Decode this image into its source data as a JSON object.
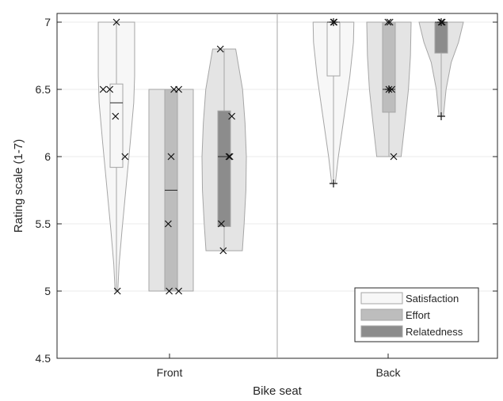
{
  "chart_data": {
    "type": "violin",
    "title": "",
    "xlabel": "Bike seat",
    "ylabel": "Rating scale (1-7)",
    "ylim": [
      4.5,
      7.05
    ],
    "yticks": [
      4.5,
      5,
      5.5,
      6,
      6.5,
      7
    ],
    "ytick_labels": [
      "4.5",
      "5",
      "5.5",
      "6",
      "6.5",
      "7"
    ],
    "categories": [
      "Front",
      "Back"
    ],
    "grid": "horizontal",
    "legend": {
      "position": "bottom-right",
      "entries": [
        {
          "label": "Satisfaction",
          "color": "#f7f7f7"
        },
        {
          "label": "Effort",
          "color": "#bdbdbd"
        },
        {
          "label": "Relatedness",
          "color": "#8c8c8c"
        }
      ]
    },
    "colors": {
      "violin_fills": [
        "#f7f7f7",
        "#e4e4e4",
        "#e4e4e4"
      ],
      "box_fills": [
        "#f7f7f7",
        "#bdbdbd",
        "#8c8c8c"
      ],
      "outline": "#a6a6a6",
      "axis": "#262626",
      "grid": "#ebebeb",
      "divider": "#a6a6a6"
    },
    "groups": [
      {
        "category": "Front",
        "series": [
          {
            "name": "Satisfaction",
            "violin": {
              "min": 5,
              "max": 7,
              "profile": [
                [
                  5.0,
                  0.06
                ],
                [
                  5.2,
                  0.12
                ],
                [
                  5.45,
                  0.25
                ],
                [
                  5.75,
                  0.42
                ],
                [
                  6.1,
                  0.62
                ],
                [
                  6.4,
                  0.78
                ],
                [
                  6.6,
                  0.82
                ],
                [
                  6.8,
                  0.82
                ],
                [
                  7.0,
                  0.82
                ]
              ]
            },
            "box": {
              "q1": 5.92,
              "q3": 6.54
            },
            "median": 6.4,
            "points": [
              [
                0.0,
                7.0
              ],
              [
                -0.7,
                6.5
              ],
              [
                -0.35,
                6.5
              ],
              [
                -0.05,
                6.3
              ],
              [
                0.45,
                6.0
              ],
              [
                0.05,
                5.0
              ]
            ],
            "plus": []
          },
          {
            "name": "Effort",
            "violin": {
              "min": 5,
              "max": 6.5,
              "profile": [
                [
                  5.0,
                  1
                ],
                [
                  6.5,
                  1
                ]
              ]
            },
            "box": {
              "q1": 5.0,
              "q3": 6.5
            },
            "median": 5.75,
            "points": [
              [
                0.15,
                6.5
              ],
              [
                0.4,
                6.5
              ],
              [
                0.0,
                6.0
              ],
              [
                -0.15,
                5.5
              ],
              [
                -0.1,
                5.0
              ],
              [
                0.4,
                5.0
              ]
            ],
            "plus": []
          },
          {
            "name": "Relatedness",
            "violin": {
              "min": 5.3,
              "max": 6.8,
              "profile": [
                [
                  5.3,
                  0.82
                ],
                [
                  5.5,
                  0.9
                ],
                [
                  5.75,
                  0.98
                ],
                [
                  6.0,
                  1.0
                ],
                [
                  6.25,
                  0.94
                ],
                [
                  6.5,
                  0.83
                ],
                [
                  6.8,
                  0.52
                ]
              ]
            },
            "box": {
              "q1": 5.48,
              "q3": 6.34
            },
            "median": 6.0,
            "points": [
              [
                -0.2,
                6.8
              ],
              [
                0.4,
                6.3
              ],
              [
                0.25,
                6.0
              ],
              [
                0.3,
                6.0
              ],
              [
                -0.15,
                5.5
              ],
              [
                -0.05,
                5.3
              ]
            ],
            "plus": []
          }
        ]
      },
      {
        "category": "Back",
        "series": [
          {
            "name": "Satisfaction",
            "violin": {
              "min": 5.8,
              "max": 7,
              "profile": [
                [
                  5.8,
                  0.08
                ],
                [
                  6.0,
                  0.22
                ],
                [
                  6.3,
                  0.48
                ],
                [
                  6.6,
                  0.74
                ],
                [
                  6.85,
                  0.9
                ],
                [
                  7.0,
                  0.92
                ]
              ]
            },
            "box": {
              "q1": 6.6,
              "q3": 7.0
            },
            "median": 7.0,
            "points": [
              [
                0.0,
                7.0
              ],
              [
                0.03,
                7.0
              ]
            ],
            "plus": [
              [
                0.0,
                7.0
              ],
              [
                0.0,
                5.8
              ]
            ]
          },
          {
            "name": "Effort",
            "violin": {
              "min": 6,
              "max": 7,
              "profile": [
                [
                  6.0,
                  0.55
                ],
                [
                  6.25,
                  0.72
                ],
                [
                  6.5,
                  0.88
                ],
                [
                  6.75,
                  0.97
                ],
                [
                  7.0,
                  1.0
                ]
              ]
            },
            "box": {
              "q1": 6.33,
              "q3": 7.0
            },
            "median": 6.5,
            "points": [
              [
                -0.05,
                7.0
              ],
              [
                0.05,
                7.0
              ],
              [
                0.0,
                6.5
              ],
              [
                0.15,
                6.5
              ],
              [
                0.25,
                6.0
              ]
            ],
            "plus": [
              [
                0.0,
                6.5
              ]
            ]
          },
          {
            "name": "Relatedness",
            "violin": {
              "min": 6.3,
              "max": 7,
              "profile": [
                [
                  6.3,
                  0.1
                ],
                [
                  6.5,
                  0.22
                ],
                [
                  6.7,
                  0.45
                ],
                [
                  6.85,
                  0.78
                ],
                [
                  7.0,
                  1.0
                ]
              ]
            },
            "box": {
              "q1": 6.77,
              "q3": 7.0
            },
            "median": 7.0,
            "points": [
              [
                0.0,
                7.0
              ],
              [
                0.05,
                7.0
              ]
            ],
            "plus": [
              [
                0.0,
                7.0
              ],
              [
                0.0,
                6.3
              ]
            ]
          }
        ]
      }
    ]
  }
}
